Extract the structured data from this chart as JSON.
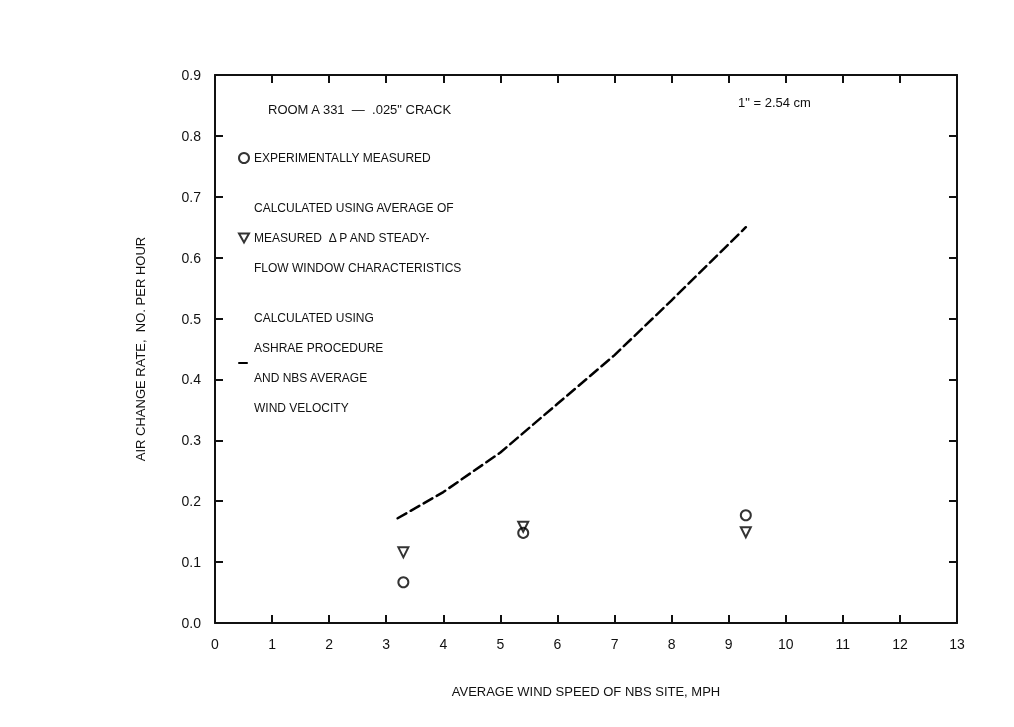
{
  "chart_data": {
    "type": "scatter",
    "xlabel": "AVERAGE WIND SPEED OF NBS SITE, MPH",
    "ylabel": "AIR CHANGE RATE,  NO. PER HOUR",
    "annotations": [
      "ROOM A 331  —  .025\" CRACK",
      "1\" = 2.54 cm"
    ],
    "xlim": [
      0,
      13
    ],
    "xticks": [
      0,
      1,
      2,
      3,
      4,
      5,
      6,
      7,
      8,
      9,
      10,
      11,
      12,
      13
    ],
    "ylim": [
      0,
      0.9
    ],
    "yticks": [
      {
        "value": 0,
        "label": "0.0"
      },
      0.1,
      0.2,
      0.3,
      0.4,
      0.5,
      0.6,
      0.7,
      0.8,
      0.9
    ],
    "grid": false,
    "legend": "top left",
    "series": [
      {
        "name": "EXPERIMENTALLY MEASURED",
        "marker": "circle",
        "color": "#000000",
        "x": [
          3.3,
          5.4,
          9.3
        ],
        "values": [
          0.067,
          0.148,
          0.177
        ]
      },
      {
        "name": "CALCULATED USING AVERAGE OF\nMEASURED  Δ P AND STEADY-\nFLOW WINDOW CHARACTERISTICS",
        "marker": "triangle",
        "color": "#000000",
        "x": [
          3.3,
          5.4,
          9.3
        ],
        "values": [
          0.116,
          0.158,
          0.149
        ]
      },
      {
        "name": "CALCULATED USING\nASHRAE PROCEDURE\nAND NBS AVERAGE\nWIND VELOCITY",
        "type": "line",
        "marker": "none",
        "line_style": "dashed",
        "color": "#000000",
        "x": [
          3.2,
          4,
          5,
          6,
          7,
          8,
          9.3
        ],
        "values": [
          0.172,
          0.215,
          0.28,
          0.36,
          0.44,
          0.53,
          0.65
        ]
      }
    ]
  }
}
